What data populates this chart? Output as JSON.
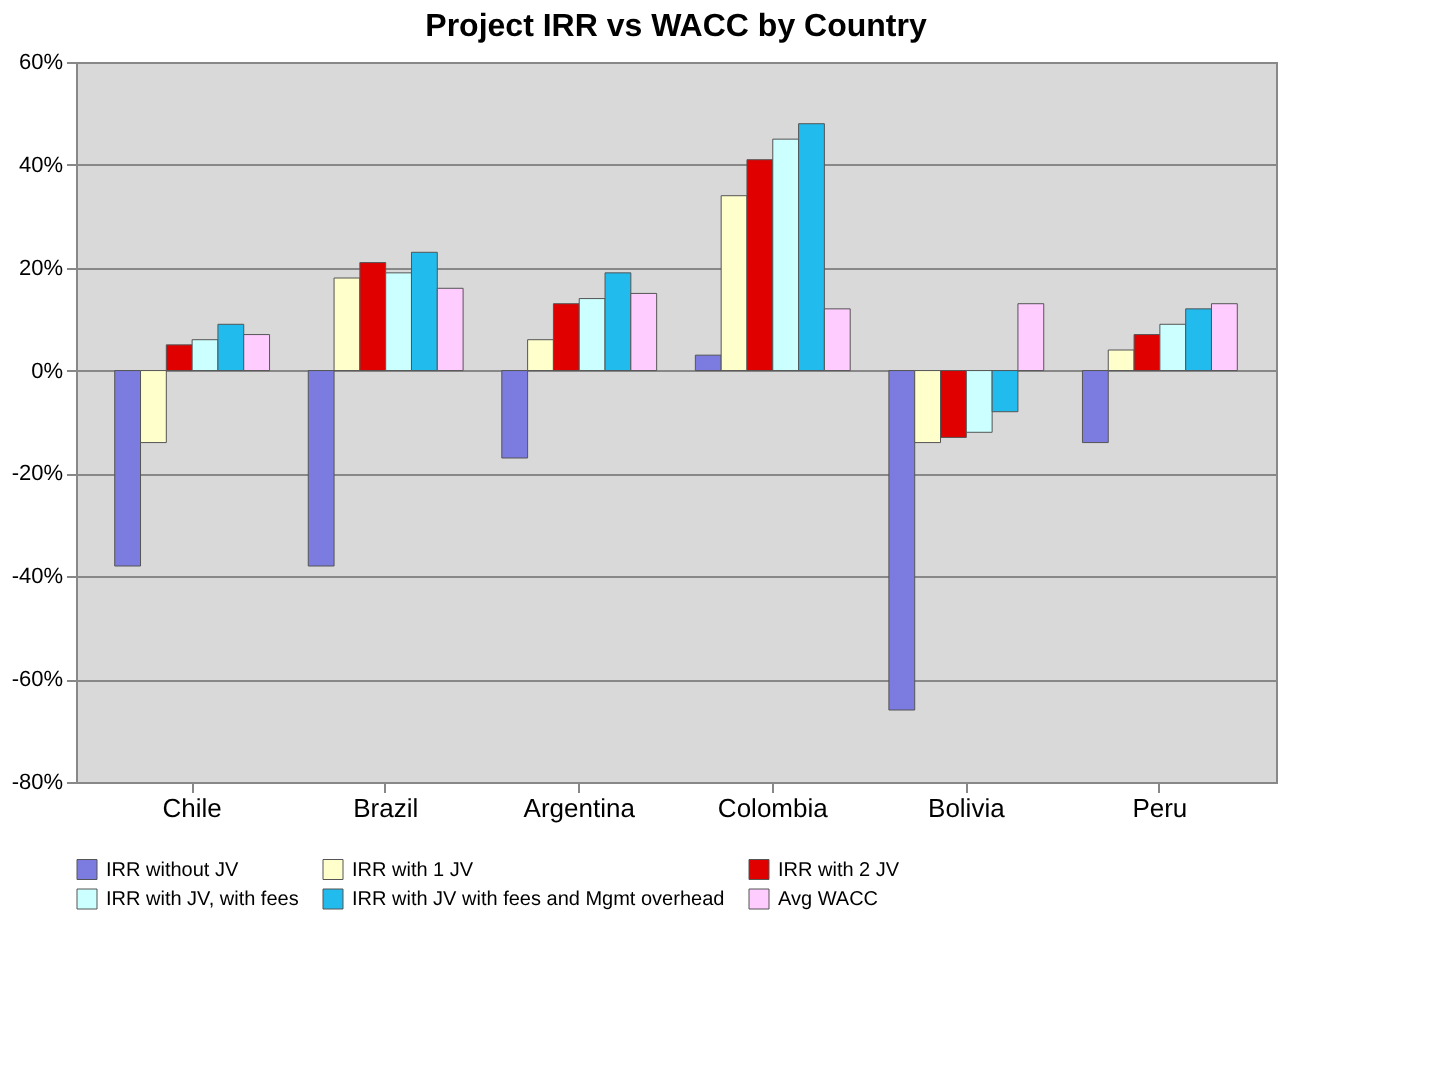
{
  "chart_data": {
    "type": "bar",
    "title": "Project IRR vs WACC  by Country",
    "categories": [
      "Chile",
      "Brazil",
      "Argentina",
      "Colombia",
      "Bolivia",
      "Peru"
    ],
    "series": [
      {
        "name": "IRR without JV",
        "color": "#7b7be0",
        "values": [
          -38,
          -38,
          -17,
          3,
          -66,
          -14
        ]
      },
      {
        "name": "IRR with 1 JV",
        "color": "#ffffcc",
        "values": [
          -14,
          18,
          6,
          34,
          -14,
          4
        ]
      },
      {
        "name": "IRR with 2 JV",
        "color": "#e00000",
        "values": [
          5,
          21,
          13,
          41,
          -13,
          7
        ]
      },
      {
        "name": "IRR with JV, with fees",
        "color": "#ccffff",
        "values": [
          6,
          19,
          14,
          45,
          -12,
          9
        ]
      },
      {
        "name": "IRR with JV with fees and Mgmt overhead",
        "color": "#22bbee",
        "values": [
          9,
          23,
          19,
          48,
          -8,
          12
        ]
      },
      {
        "name": "Avg WACC",
        "color": "#ffccff",
        "values": [
          7,
          16,
          15,
          12,
          13,
          13
        ]
      }
    ],
    "ylim": [
      -80,
      60
    ],
    "yticks": [
      {
        "value": 60,
        "label": "60%"
      },
      {
        "value": 40,
        "label": "40%"
      },
      {
        "value": 20,
        "label": "20%"
      },
      {
        "value": 0,
        "label": "0%"
      },
      {
        "value": -20,
        "label": "-20%"
      },
      {
        "value": -40,
        "label": "-40%"
      },
      {
        "value": -60,
        "label": "-60%"
      },
      {
        "value": -80,
        "label": "-80%"
      }
    ],
    "grid": "y",
    "legend": "bottom"
  }
}
